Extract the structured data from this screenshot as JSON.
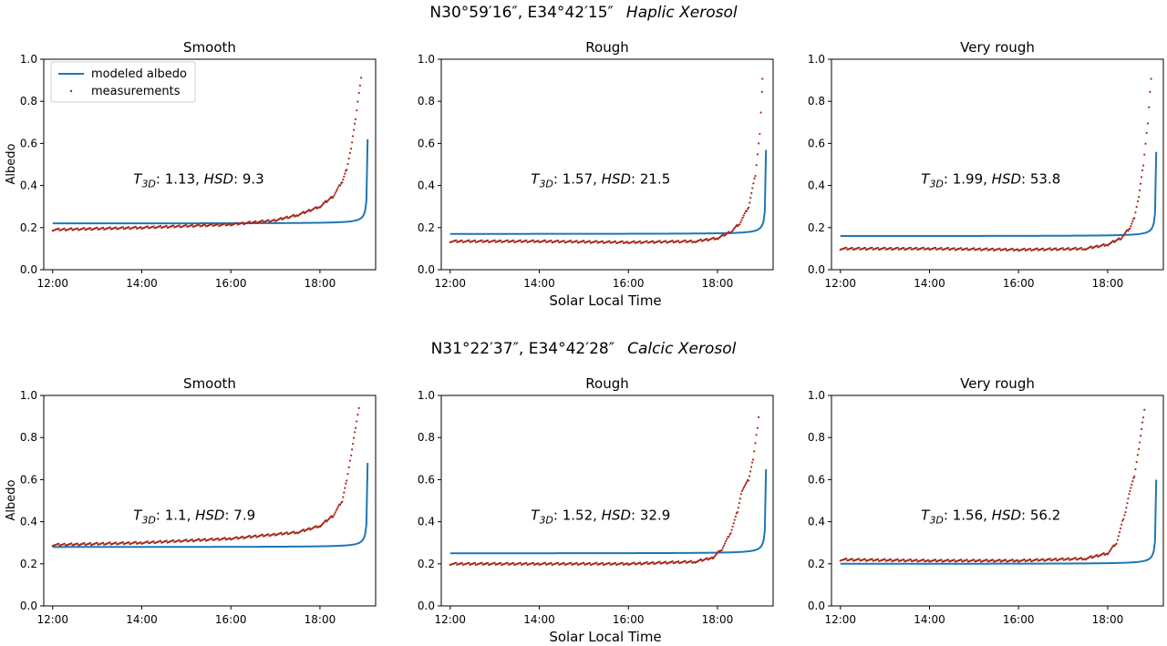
{
  "figure": {
    "rows": [
      {
        "heading_coords": "N30°59′16″, E34°42′15″",
        "heading_soil": "Haplic Xerosol"
      },
      {
        "heading_coords": "N31°22′37″, E34°42′28″",
        "heading_soil": "Calcic Xerosol"
      }
    ],
    "shared_xlabel": "Solar Local Time",
    "ylabel": "Albedo",
    "legend": {
      "modeled": "modeled albedo",
      "measured": "measurements",
      "placement": "top-left"
    },
    "colors": {
      "modeled": "#1f77b4",
      "measured": "#a52a1e",
      "axis": "#000000"
    },
    "annotation_labels": {
      "t3d_main": "T",
      "t3d_sub": "3D",
      "hsd": "HSD"
    }
  },
  "chart_data": [
    {
      "type": "line",
      "title": "Smooth",
      "row": 0,
      "col": 0,
      "x_ticks": [
        "12:00",
        "14:00",
        "16:00",
        "18:00"
      ],
      "xlim": [
        11.8,
        19.25
      ],
      "y_ticks": [
        "0.0",
        "0.2",
        "0.4",
        "0.6",
        "0.8",
        "1.0"
      ],
      "ylim": [
        0,
        1
      ],
      "t3d": "1.1",
      "hsd": "9.3",
      "t3d_display": "1.13",
      "modeled": {
        "base": 0.22,
        "slope": 0.0,
        "singularity": 19.08
      },
      "measured": [
        [
          12,
          0.19
        ],
        [
          14,
          0.2
        ],
        [
          16,
          0.215
        ],
        [
          17,
          0.235
        ],
        [
          17.5,
          0.26
        ],
        [
          18,
          0.3
        ],
        [
          18.3,
          0.35
        ],
        [
          18.5,
          0.42
        ],
        [
          18.6,
          0.48
        ],
        [
          18.7,
          0.58
        ],
        [
          18.8,
          0.72
        ],
        [
          18.9,
          0.88
        ],
        [
          18.95,
          0.95
        ]
      ]
    },
    {
      "type": "line",
      "title": "Rough",
      "row": 0,
      "col": 1,
      "x_ticks": [
        "12:00",
        "14:00",
        "16:00",
        "18:00"
      ],
      "xlim": [
        11.8,
        19.25
      ],
      "y_ticks": [
        "0.0",
        "0.2",
        "0.4",
        "0.6",
        "0.8",
        "1.0"
      ],
      "ylim": [
        0,
        1
      ],
      "t3d_display": "1.57",
      "hsd": "21.5",
      "modeled": {
        "base": 0.17,
        "slope": 0.0,
        "singularity": 19.1
      },
      "measured": [
        [
          12,
          0.135
        ],
        [
          14,
          0.135
        ],
        [
          16,
          0.13
        ],
        [
          17.5,
          0.135
        ],
        [
          18,
          0.15
        ],
        [
          18.3,
          0.18
        ],
        [
          18.5,
          0.22
        ],
        [
          18.7,
          0.3
        ],
        [
          18.85,
          0.45
        ],
        [
          18.95,
          0.65
        ],
        [
          19.0,
          0.85
        ],
        [
          19.02,
          0.97
        ]
      ]
    },
    {
      "type": "line",
      "title": "Very rough",
      "row": 0,
      "col": 2,
      "x_ticks": [
        "12:00",
        "14:00",
        "16:00",
        "18:00"
      ],
      "xlim": [
        11.8,
        19.25
      ],
      "y_ticks": [
        "0.0",
        "0.2",
        "0.4",
        "0.6",
        "0.8",
        "1.0"
      ],
      "ylim": [
        0,
        1
      ],
      "t3d_display": "1.99",
      "hsd": "53.8",
      "modeled": {
        "base": 0.16,
        "slope": 0.0,
        "singularity": 19.1
      },
      "measured": [
        [
          12,
          0.1
        ],
        [
          14,
          0.1
        ],
        [
          16,
          0.095
        ],
        [
          17.5,
          0.1
        ],
        [
          18,
          0.12
        ],
        [
          18.3,
          0.15
        ],
        [
          18.5,
          0.2
        ],
        [
          18.6,
          0.25
        ],
        [
          18.7,
          0.35
        ],
        [
          18.8,
          0.5
        ],
        [
          18.9,
          0.7
        ],
        [
          18.95,
          0.85
        ],
        [
          19.0,
          0.97
        ]
      ]
    },
    {
      "type": "line",
      "title": "Smooth",
      "row": 1,
      "col": 0,
      "x_ticks": [
        "12:00",
        "14:00",
        "16:00",
        "18:00"
      ],
      "xlim": [
        11.8,
        19.25
      ],
      "y_ticks": [
        "0.0",
        "0.2",
        "0.4",
        "0.6",
        "0.8",
        "1.0"
      ],
      "ylim": [
        0,
        1
      ],
      "t3d_display": "1.1",
      "hsd": "7.9",
      "modeled": {
        "base": 0.28,
        "slope": 0.0,
        "singularity": 19.08
      },
      "measured": [
        [
          12,
          0.29
        ],
        [
          14,
          0.3
        ],
        [
          16,
          0.32
        ],
        [
          17,
          0.34
        ],
        [
          17.5,
          0.35
        ],
        [
          18,
          0.38
        ],
        [
          18.3,
          0.43
        ],
        [
          18.5,
          0.5
        ],
        [
          18.6,
          0.6
        ],
        [
          18.7,
          0.72
        ],
        [
          18.8,
          0.85
        ],
        [
          18.9,
          0.97
        ]
      ]
    },
    {
      "type": "line",
      "title": "Rough",
      "row": 1,
      "col": 1,
      "x_ticks": [
        "12:00",
        "14:00",
        "16:00",
        "18:00"
      ],
      "xlim": [
        11.8,
        19.25
      ],
      "y_ticks": [
        "0.0",
        "0.2",
        "0.4",
        "0.6",
        "0.8",
        "1.0"
      ],
      "ylim": [
        0,
        1
      ],
      "t3d_display": "1.52",
      "hsd": "32.9",
      "modeled": {
        "base": 0.25,
        "slope": 0.0,
        "singularity": 19.1
      },
      "measured": [
        [
          12,
          0.2
        ],
        [
          14,
          0.2
        ],
        [
          16,
          0.2
        ],
        [
          17.5,
          0.21
        ],
        [
          17.9,
          0.23
        ],
        [
          18.1,
          0.27
        ],
        [
          18.3,
          0.35
        ],
        [
          18.45,
          0.45
        ],
        [
          18.55,
          0.55
        ],
        [
          18.7,
          0.6
        ],
        [
          18.8,
          0.7
        ],
        [
          18.9,
          0.85
        ],
        [
          18.95,
          0.95
        ]
      ]
    },
    {
      "type": "line",
      "title": "Very rough",
      "row": 1,
      "col": 2,
      "x_ticks": [
        "12:00",
        "14:00",
        "16:00",
        "18:00"
      ],
      "xlim": [
        11.8,
        19.25
      ],
      "y_ticks": [
        "0.0",
        "0.2",
        "0.4",
        "0.6",
        "0.8",
        "1.0"
      ],
      "ylim": [
        0,
        1
      ],
      "t3d_display": "1.56",
      "hsd": "56.2",
      "modeled": {
        "base": 0.2,
        "slope": 0.0,
        "singularity": 19.1
      },
      "measured": [
        [
          12,
          0.22
        ],
        [
          14,
          0.215
        ],
        [
          16,
          0.215
        ],
        [
          17.5,
          0.225
        ],
        [
          18,
          0.25
        ],
        [
          18.2,
          0.3
        ],
        [
          18.4,
          0.45
        ],
        [
          18.5,
          0.55
        ],
        [
          18.6,
          0.62
        ],
        [
          18.7,
          0.75
        ],
        [
          18.8,
          0.9
        ],
        [
          18.85,
          0.97
        ]
      ]
    }
  ]
}
